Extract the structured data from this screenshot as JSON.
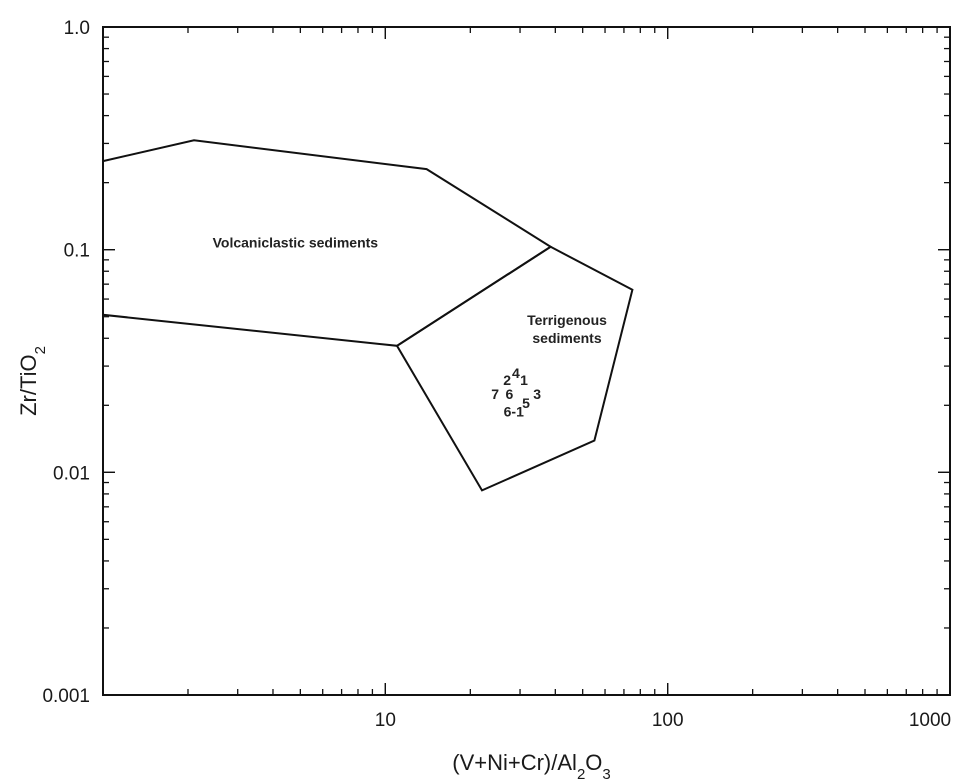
{
  "chart_data": {
    "type": "scatter",
    "title": "",
    "xlabel": "(V+Ni+Cr)/Al₂O₃",
    "ylabel": "Zr/TiO₂",
    "xscale": "log",
    "yscale": "log",
    "xlim": [
      1,
      1000
    ],
    "ylim": [
      0.001,
      1.0
    ],
    "x_tick_labels": [
      "10",
      "100",
      "1000"
    ],
    "y_tick_labels": [
      "1.0",
      "0.1",
      "0.01",
      "0.001"
    ],
    "grid": false,
    "regions": [
      {
        "name": "Volcaniclastic sediments",
        "label": "Volcaniclastic sediments",
        "polygon": [
          [
            1,
            0.25
          ],
          [
            2.1,
            0.31
          ],
          [
            14,
            0.23
          ],
          [
            38.5,
            0.103
          ],
          [
            11,
            0.037
          ],
          [
            1,
            0.051
          ]
        ]
      },
      {
        "name": "Terrigenous sediments",
        "label_lines": [
          "Terrigenous",
          "sediments"
        ],
        "polygon": [
          [
            11,
            0.037
          ],
          [
            38.5,
            0.103
          ],
          [
            75,
            0.066
          ],
          [
            55,
            0.0139
          ],
          [
            22,
            0.0083
          ]
        ]
      }
    ],
    "points": [
      {
        "label": "1",
        "x": 31,
        "y": 0.026
      },
      {
        "label": "2",
        "x": 27,
        "y": 0.026
      },
      {
        "label": "3",
        "x": 34.5,
        "y": 0.0225
      },
      {
        "label": "4",
        "x": 29,
        "y": 0.028
      },
      {
        "label": "5",
        "x": 31.5,
        "y": 0.0205
      },
      {
        "label": "6",
        "x": 27.5,
        "y": 0.0225
      },
      {
        "label": "6-1",
        "x": 28.5,
        "y": 0.0188
      },
      {
        "label": "7",
        "x": 24.5,
        "y": 0.0225
      }
    ]
  }
}
